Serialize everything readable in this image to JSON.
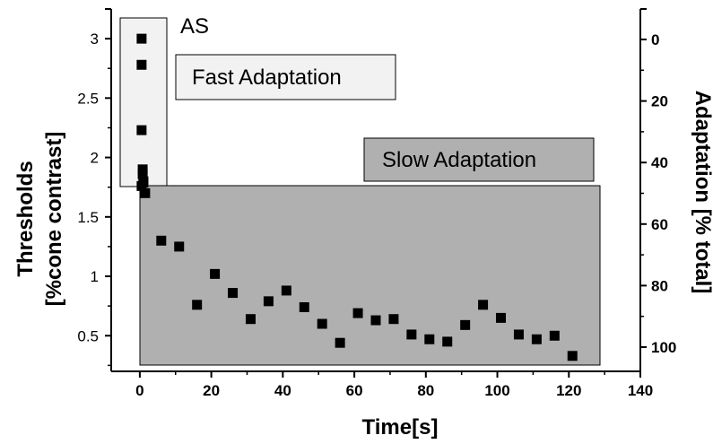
{
  "chart_data": {
    "type": "scatter",
    "xlabel": "Time[s]",
    "ylabel_lines": [
      "Thresholds",
      "[%cone contrast]"
    ],
    "y2label": "Adaptation [% total]",
    "xlim": [
      -8,
      140
    ],
    "ylim": [
      0.2,
      3.25
    ],
    "y2lim": [
      0,
      100
    ],
    "y2_reversed": true,
    "x_ticks": [
      0,
      20,
      40,
      60,
      80,
      100,
      120,
      140
    ],
    "y_ticks": [
      0.5,
      1,
      1.5,
      2,
      2.5,
      3
    ],
    "y2_ticks": [
      0,
      20,
      40,
      60,
      80,
      100
    ],
    "grid": false,
    "marker": "square",
    "marker_color": "#000000",
    "annotations": [
      {
        "text": "AS",
        "style": "plain"
      },
      {
        "text": "Fast Adaptation",
        "style": "light-box"
      },
      {
        "text": "Slow Adaptation",
        "style": "dark-box"
      }
    ],
    "fast_region_color": "#f2f2f2",
    "slow_region_color": "#b0b0b0",
    "series": [
      {
        "x": [
          0.5,
          0.5,
          0.5,
          0.8,
          0.8,
          1,
          1,
          0.5,
          1.5,
          6,
          11,
          16,
          21,
          26,
          31,
          36,
          41,
          46,
          51,
          56,
          61,
          66,
          71,
          76,
          81,
          86,
          91,
          96,
          101,
          106,
          111,
          116,
          121
        ],
        "values": [
          3.0,
          2.78,
          2.23,
          1.9,
          1.86,
          1.8,
          1.79,
          1.76,
          1.7,
          1.3,
          1.25,
          0.76,
          1.02,
          0.86,
          0.64,
          0.79,
          0.88,
          0.74,
          0.6,
          0.44,
          0.69,
          0.63,
          0.64,
          0.51,
          0.47,
          0.45,
          0.59,
          0.76,
          0.65,
          0.51,
          0.47,
          0.5,
          0.33
        ]
      }
    ]
  }
}
